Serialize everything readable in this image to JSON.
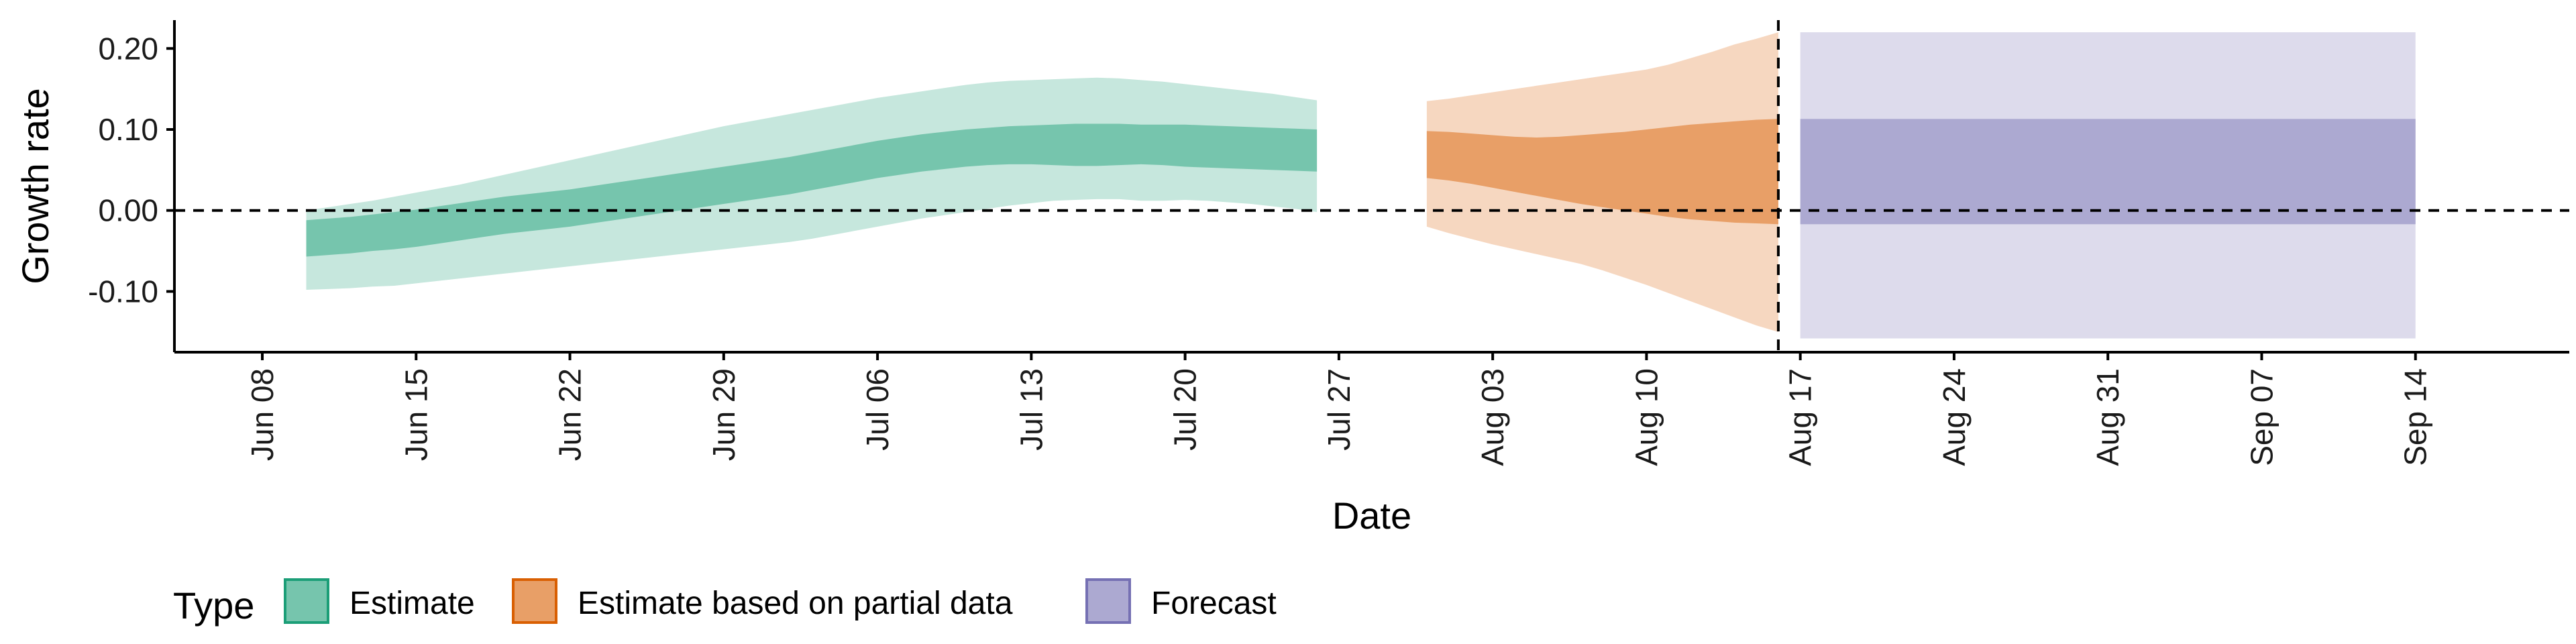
{
  "chart_data": {
    "type": "area",
    "title": "",
    "xlabel": "Date",
    "ylabel": "Growth rate",
    "x_start": "2020-06-04",
    "x_end": "2020-09-21",
    "ylim": [
      -0.175,
      0.235
    ],
    "x_ticks": [
      "Jun 08",
      "Jun 15",
      "Jun 22",
      "Jun 29",
      "Jul 06",
      "Jul 13",
      "Jul 20",
      "Jul 27",
      "Aug 03",
      "Aug 10",
      "Aug 17",
      "Aug 24",
      "Aug 31",
      "Sep 07",
      "Sep 14"
    ],
    "y_ticks": [
      {
        "value": 0.2,
        "label": "0.20"
      },
      {
        "value": 0.1,
        "label": "0.10"
      },
      {
        "value": 0.0,
        "label": "0.00"
      },
      {
        "value": -0.1,
        "label": "-0.10"
      }
    ],
    "reference_line_y": 0.0,
    "forecast_date_line": "2020-08-16",
    "legend": {
      "title": "Type",
      "position": "bottom-left"
    },
    "series": [
      {
        "name": "Estimate",
        "color": "#1b9e77",
        "start": "2020-06-10",
        "outer_lower": [
          -0.098,
          -0.097,
          -0.096,
          -0.094,
          -0.093,
          -0.09,
          -0.087,
          -0.084,
          -0.081,
          -0.078,
          -0.075,
          -0.072,
          -0.069,
          -0.066,
          -0.063,
          -0.06,
          -0.057,
          -0.054,
          -0.051,
          -0.048,
          -0.045,
          -0.042,
          -0.039,
          -0.035,
          -0.03,
          -0.025,
          -0.02,
          -0.015,
          -0.01,
          -0.006,
          -0.002,
          0.002,
          0.006,
          0.009,
          0.012,
          0.013,
          0.014,
          0.014,
          0.012,
          0.012,
          0.013,
          0.012,
          0.01,
          0.008,
          0.005,
          0.002,
          -0.002
        ],
        "inner_lower": [
          -0.057,
          -0.055,
          -0.053,
          -0.05,
          -0.048,
          -0.045,
          -0.041,
          -0.037,
          -0.033,
          -0.029,
          -0.026,
          -0.023,
          -0.02,
          -0.016,
          -0.012,
          -0.008,
          -0.004,
          0.0,
          0.004,
          0.008,
          0.012,
          0.016,
          0.02,
          0.025,
          0.03,
          0.035,
          0.04,
          0.044,
          0.048,
          0.051,
          0.054,
          0.056,
          0.057,
          0.057,
          0.056,
          0.055,
          0.055,
          0.056,
          0.057,
          0.056,
          0.054,
          0.053,
          0.052,
          0.051,
          0.05,
          0.049,
          0.048
        ],
        "inner_upper": [
          -0.012,
          -0.01,
          -0.008,
          -0.005,
          -0.002,
          0.001,
          0.005,
          0.009,
          0.013,
          0.017,
          0.02,
          0.023,
          0.026,
          0.03,
          0.034,
          0.038,
          0.042,
          0.046,
          0.05,
          0.054,
          0.058,
          0.062,
          0.066,
          0.071,
          0.076,
          0.081,
          0.086,
          0.09,
          0.094,
          0.097,
          0.1,
          0.102,
          0.104,
          0.105,
          0.106,
          0.107,
          0.107,
          0.107,
          0.106,
          0.106,
          0.106,
          0.105,
          0.104,
          0.103,
          0.102,
          0.101,
          0.1
        ],
        "outer_upper": [
          0.0,
          0.004,
          0.008,
          0.012,
          0.017,
          0.022,
          0.027,
          0.032,
          0.038,
          0.044,
          0.05,
          0.056,
          0.062,
          0.068,
          0.074,
          0.08,
          0.086,
          0.092,
          0.098,
          0.104,
          0.109,
          0.114,
          0.119,
          0.124,
          0.129,
          0.134,
          0.139,
          0.143,
          0.147,
          0.151,
          0.155,
          0.158,
          0.16,
          0.161,
          0.162,
          0.163,
          0.164,
          0.163,
          0.161,
          0.159,
          0.156,
          0.153,
          0.15,
          0.147,
          0.144,
          0.14,
          0.136
        ]
      },
      {
        "name": "Estimate based on partial data",
        "color": "#d95f02",
        "start": "2020-07-31",
        "outer_lower": [
          -0.02,
          -0.028,
          -0.035,
          -0.042,
          -0.048,
          -0.054,
          -0.06,
          -0.066,
          -0.074,
          -0.083,
          -0.092,
          -0.102,
          -0.112,
          -0.122,
          -0.132,
          -0.142,
          -0.15
        ],
        "inner_lower": [
          0.04,
          0.037,
          0.033,
          0.028,
          0.023,
          0.018,
          0.013,
          0.008,
          0.004,
          0.0,
          -0.004,
          -0.008,
          -0.011,
          -0.013,
          -0.015,
          -0.016,
          -0.017
        ],
        "inner_upper": [
          0.098,
          0.097,
          0.095,
          0.093,
          0.091,
          0.09,
          0.091,
          0.093,
          0.095,
          0.097,
          0.1,
          0.103,
          0.106,
          0.108,
          0.11,
          0.112,
          0.113
        ],
        "outer_upper": [
          0.135,
          0.138,
          0.142,
          0.146,
          0.15,
          0.154,
          0.158,
          0.162,
          0.166,
          0.17,
          0.174,
          0.18,
          0.188,
          0.196,
          0.205,
          0.212,
          0.22
        ]
      },
      {
        "name": "Forecast",
        "color": "#7570b3",
        "start": "2020-08-17",
        "end": "2020-09-14",
        "outer_lower": -0.158,
        "inner_lower": -0.017,
        "inner_upper": 0.113,
        "outer_upper": 0.22
      }
    ]
  }
}
